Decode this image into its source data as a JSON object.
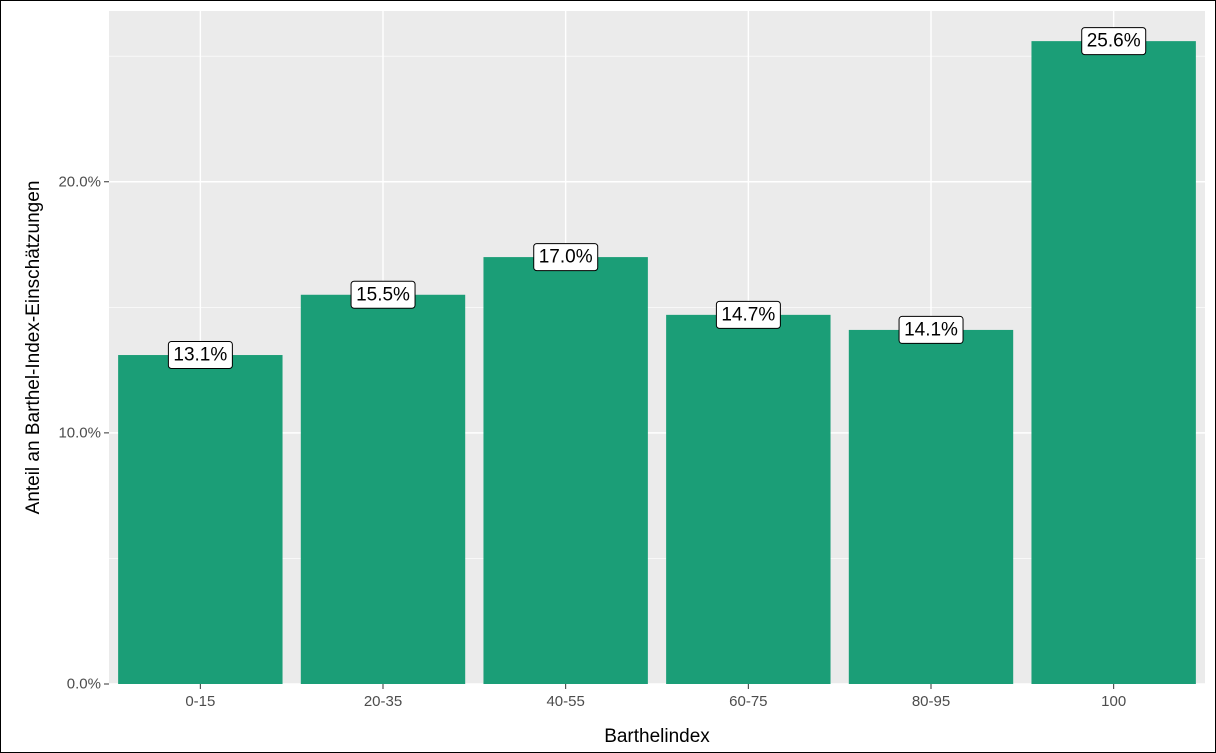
{
  "chart_data": {
    "type": "bar",
    "title": "",
    "xlabel": "Barthelindex",
    "ylabel": "Anteil an Barthel-Index-Einschätzungen",
    "categories": [
      "0-15",
      "20-35",
      "40-55",
      "60-75",
      "80-95",
      "100"
    ],
    "values": [
      13.1,
      15.5,
      17.0,
      14.7,
      14.1,
      25.6
    ],
    "value_labels": [
      "13.1%",
      "15.5%",
      "17.0%",
      "14.7%",
      "14.1%",
      "25.6%"
    ],
    "ylim": [
      0,
      26.8
    ],
    "y_ticks": [
      0,
      10,
      20
    ],
    "y_tick_labels": [
      "0.0%",
      "10.0%",
      "20.0%"
    ],
    "grid": true,
    "legend": "none",
    "colors": {
      "bar": "#1b9e77",
      "panel": "#ebebeb",
      "grid": "#ffffff",
      "tick_text": "#4d4d4d",
      "tick_mark": "#333333",
      "label_box": "#ffffff"
    }
  }
}
